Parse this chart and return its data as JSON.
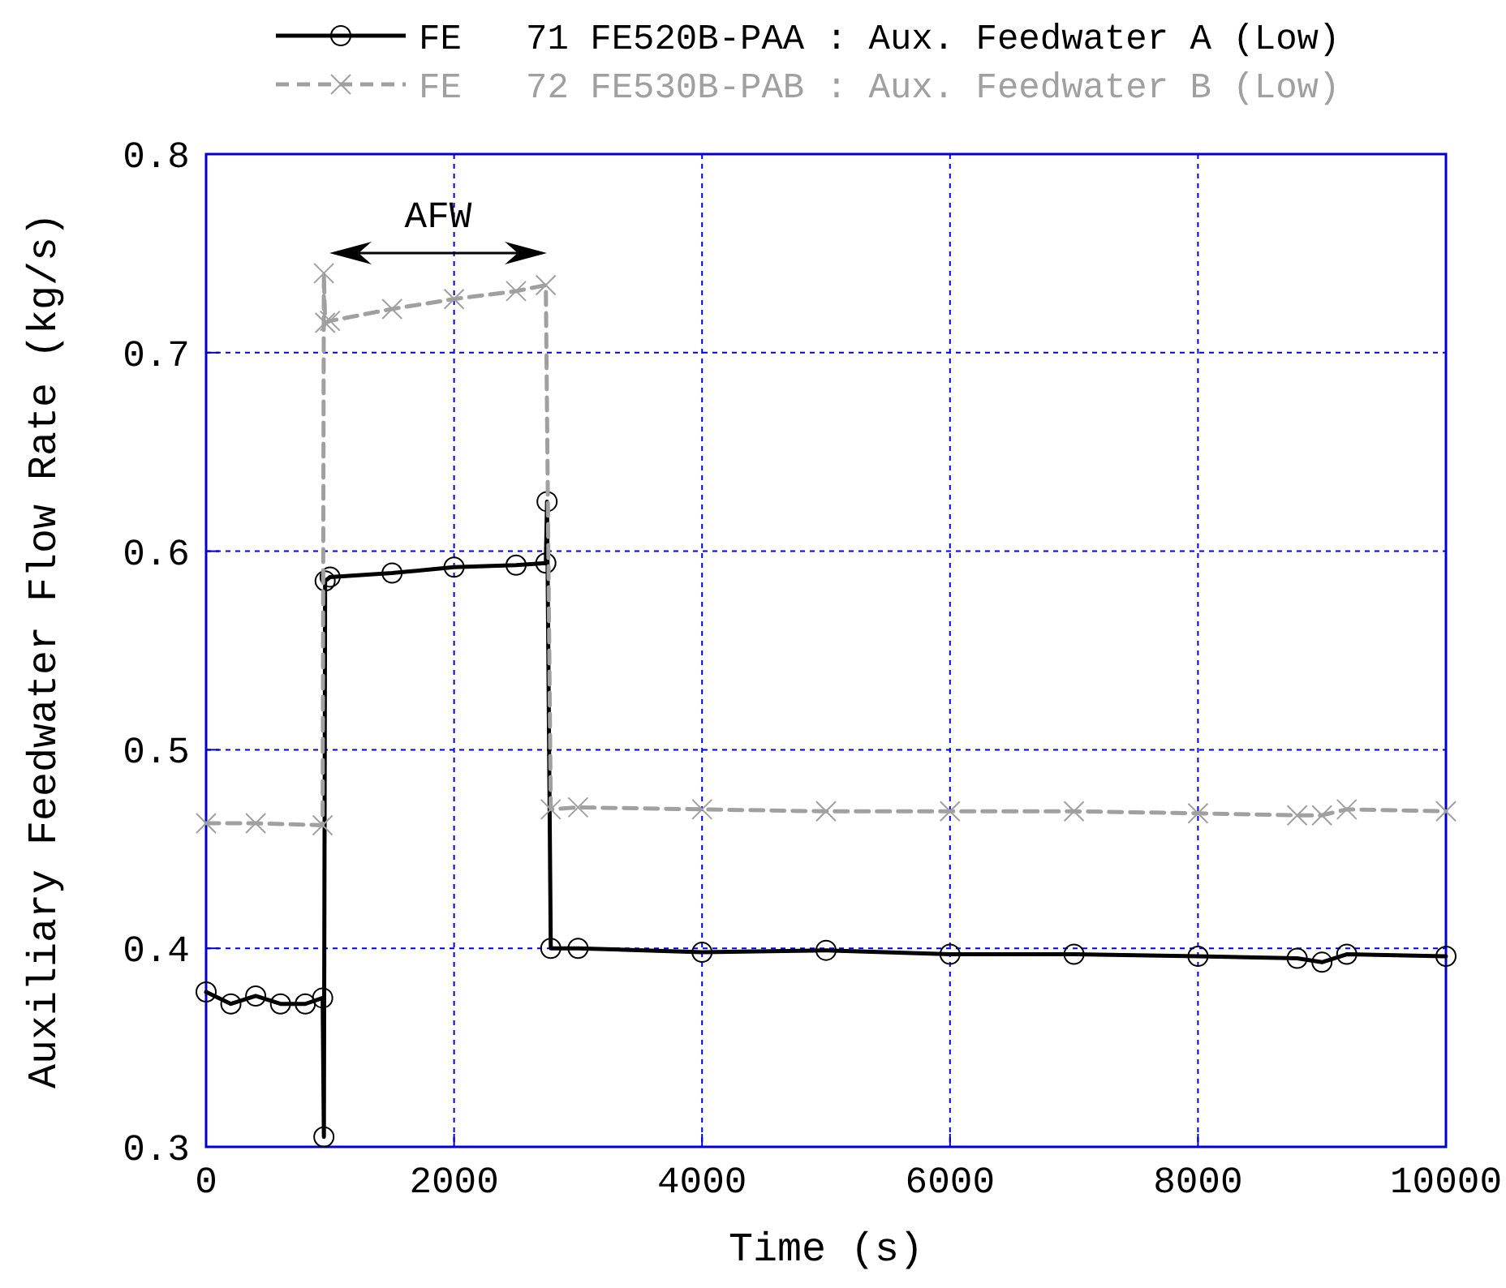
{
  "chart_data": {
    "type": "line",
    "xlabel": "Time (s)",
    "ylabel": "Auxiliary Feedwater Flow Rate (kg/s)",
    "xlim": [
      0,
      10000
    ],
    "xticks": [
      0,
      2000,
      4000,
      6000,
      8000,
      10000
    ],
    "ylim": [
      0.3,
      0.8
    ],
    "yticks": [
      {
        "value": 0.3,
        "label": "0.3"
      },
      {
        "value": 0.4,
        "label": "0.4"
      },
      {
        "value": 0.5,
        "label": "0.5"
      },
      {
        "value": 0.6,
        "label": "0.6"
      },
      {
        "value": 0.7,
        "label": "0.7"
      },
      {
        "value": 0.8,
        "label": "0.8"
      }
    ],
    "grid": true,
    "legend": "top",
    "annotations": [
      "AFW"
    ],
    "series": [
      {
        "name": "FE   71 FE520B-PAA : Aux. Feedwater A (Low)",
        "color": "#000000",
        "marker": "circle",
        "line_style": "solid",
        "x": [
          0,
          200,
          400,
          600,
          800,
          940,
          950,
          960,
          1000,
          1500,
          2000,
          2500,
          2740,
          2750,
          2780,
          3000,
          4000,
          5000,
          6000,
          7000,
          8000,
          8800,
          9000,
          9200,
          10000
        ],
        "values": [
          0.378,
          0.372,
          0.376,
          0.372,
          0.372,
          0.375,
          0.305,
          0.585,
          0.587,
          0.589,
          0.592,
          0.593,
          0.594,
          0.625,
          0.4,
          0.4,
          0.398,
          0.399,
          0.397,
          0.397,
          0.396,
          0.395,
          0.393,
          0.397,
          0.396
        ]
      },
      {
        "name": "FE   72 FE530B-PAB : Aux. Feedwater B (Low)",
        "color": "#a0a0a0",
        "marker": "cross",
        "line_style": "dashed",
        "x": [
          0,
          400,
          940,
          950,
          960,
          1000,
          1500,
          2000,
          2500,
          2740,
          2780,
          3000,
          4000,
          5000,
          6000,
          7000,
          8000,
          8800,
          9000,
          9200,
          10000
        ],
        "values": [
          0.463,
          0.463,
          0.462,
          0.74,
          0.715,
          0.716,
          0.722,
          0.727,
          0.731,
          0.734,
          0.47,
          0.471,
          0.47,
          0.469,
          0.469,
          0.469,
          0.468,
          0.467,
          0.467,
          0.47,
          0.469
        ]
      }
    ]
  }
}
